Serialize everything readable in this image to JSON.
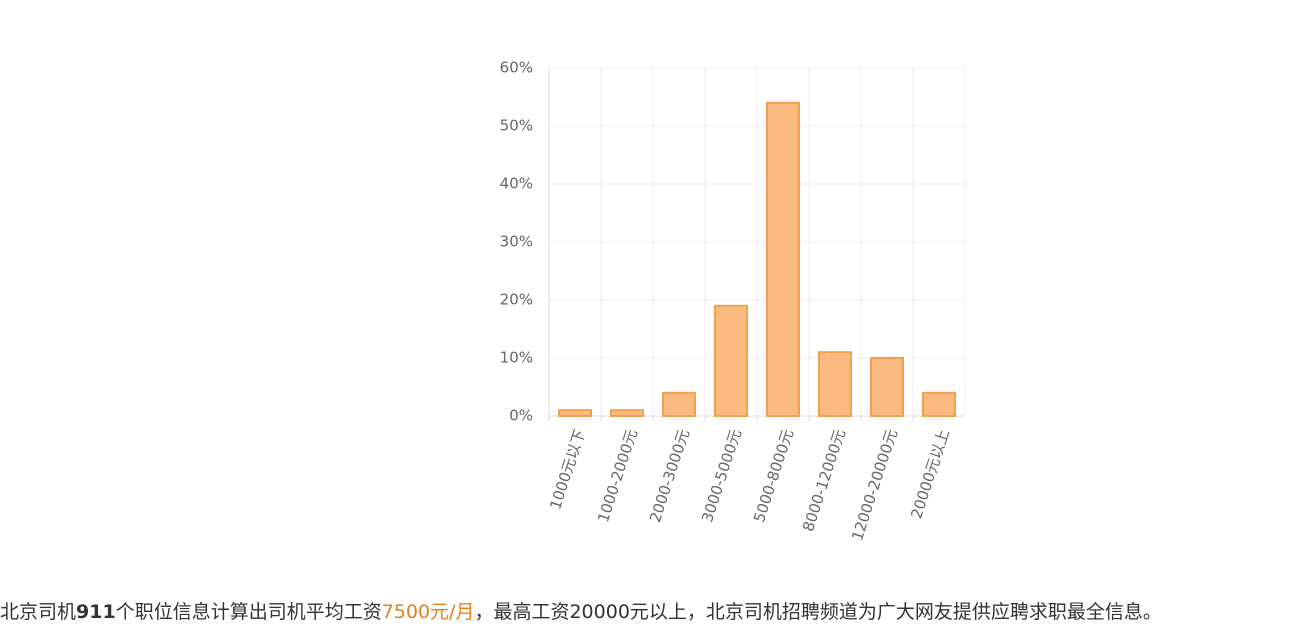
{
  "chart_data": {
    "type": "bar",
    "categories": [
      "1000元以下",
      "1000-2000元",
      "2000-3000元",
      "3000-5000元",
      "5000-8000元",
      "8000-12000元",
      "12000-20000元",
      "20000元以上"
    ],
    "values": [
      1,
      1,
      4,
      19,
      54,
      11,
      10,
      4
    ],
    "color": "#fbbb80",
    "edge_color": "#f0a04e",
    "ylim": [
      0,
      60
    ],
    "yticks": [
      {
        "value": 0,
        "label": "0%"
      },
      {
        "value": 10,
        "label": "10%"
      },
      {
        "value": 20,
        "label": "20%"
      },
      {
        "value": 30,
        "label": "30%"
      },
      {
        "value": 40,
        "label": "40%"
      },
      {
        "value": 50,
        "label": "50%"
      },
      {
        "value": 60,
        "label": "60%"
      }
    ],
    "grid": true
  },
  "caption": {
    "parts": [
      "北京司机",
      "911",
      "个职位信息计算出司机平均工资",
      "7500元/月",
      "，最高工资20000元以上，北京司机招聘频道为广大网友提供应聘求职最全信息。"
    ]
  }
}
